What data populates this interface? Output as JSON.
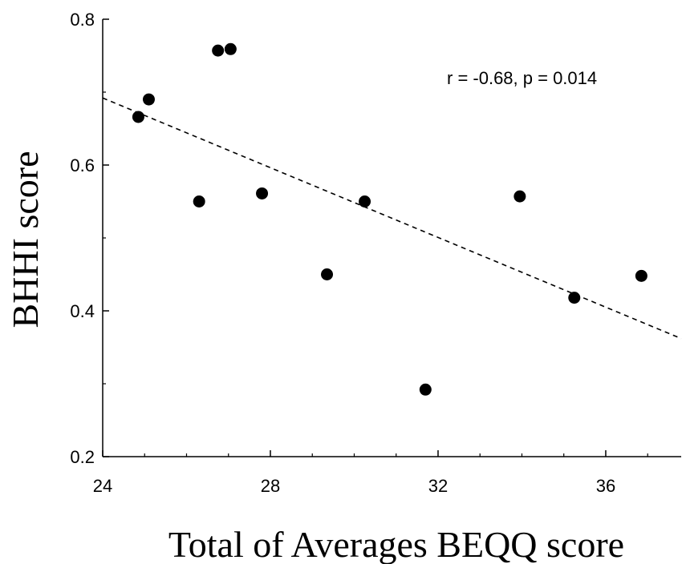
{
  "chart_data": {
    "type": "scatter",
    "title": "",
    "xlabel": "Total of Averages BEQQ score",
    "ylabel": "BHHI score",
    "xlim": [
      24,
      37.8
    ],
    "ylim": [
      0.2,
      0.8
    ],
    "x_ticks": [
      "24",
      "28",
      "32",
      "36"
    ],
    "y_ticks": [
      "0.2",
      "0.4",
      "0.6",
      "0.8"
    ],
    "grid": false,
    "annotation": "r = -0.68, p = 0.014",
    "points": [
      {
        "x": 24.85,
        "y": 0.666
      },
      {
        "x": 25.1,
        "y": 0.69
      },
      {
        "x": 26.3,
        "y": 0.55
      },
      {
        "x": 26.75,
        "y": 0.757
      },
      {
        "x": 27.05,
        "y": 0.759
      },
      {
        "x": 27.8,
        "y": 0.561
      },
      {
        "x": 29.35,
        "y": 0.45
      },
      {
        "x": 30.25,
        "y": 0.55
      },
      {
        "x": 31.7,
        "y": 0.292
      },
      {
        "x": 33.95,
        "y": 0.557
      },
      {
        "x": 35.25,
        "y": 0.418
      },
      {
        "x": 36.85,
        "y": 0.448
      }
    ],
    "fit_line": {
      "style": "dashed",
      "x": [
        24,
        37.8
      ],
      "y": [
        0.692,
        0.362
      ]
    },
    "colors": {
      "points": "#000000",
      "line": "#000000",
      "axis": "#000000"
    }
  }
}
